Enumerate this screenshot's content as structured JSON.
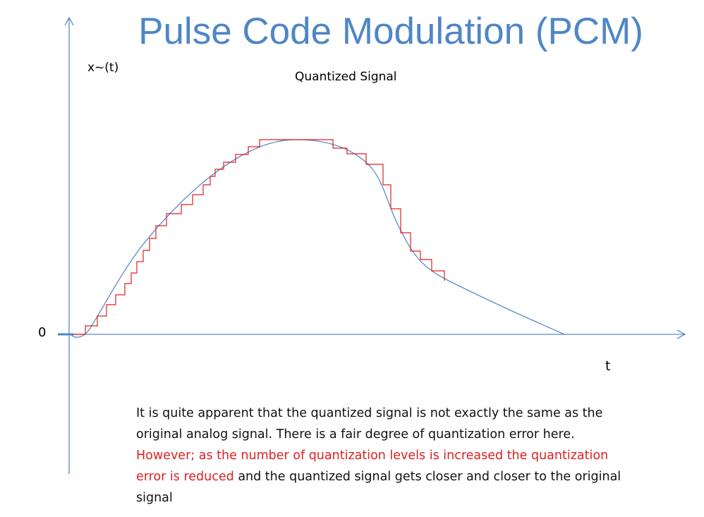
{
  "title": "Pulse Code Modulation (PCM)",
  "y_axis_label": "x~(t)",
  "x_axis_label": "t",
  "zero_label": "0",
  "figure_caption": "Quantized Signal",
  "paragraph": {
    "part1": "It is quite apparent that the quantized signal is not exactly the same as the original analog signal. There is a fair degree of quantization error here. ",
    "part2_highlight": "However; as the number of quantization levels is increased the quantization error is reduced",
    "part3": " and the quantized signal gets closer and closer to the original signal"
  },
  "colors": {
    "title": "#4f86c6",
    "axis": "#5b8ac9",
    "analog_curve": "#5b8ac9",
    "quantized_curve": "#e02020",
    "highlight_text": "#e02020"
  }
}
